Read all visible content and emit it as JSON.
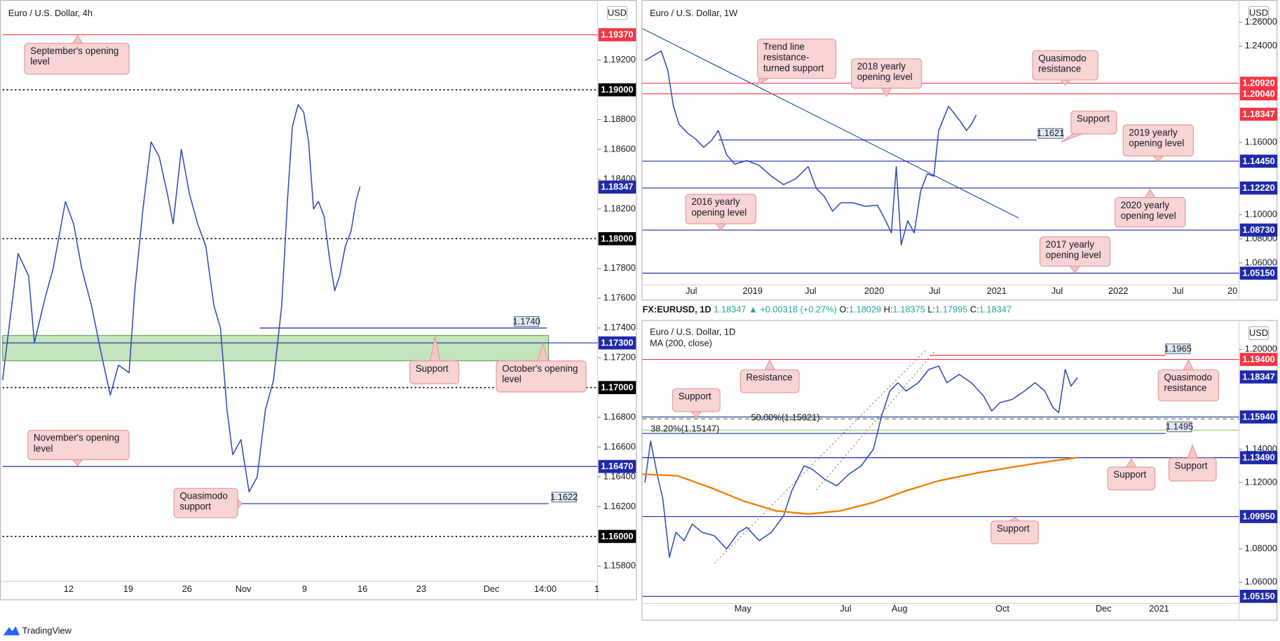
{
  "chart_data": [
    {
      "type": "line",
      "title": "Euro / U.S. Dollar, 4h",
      "currency": "USD",
      "xtick_labels": [
        "12",
        "19",
        "26",
        "Nov",
        "9",
        "16",
        "23",
        "Dec",
        "14:00",
        "1"
      ],
      "ylim": [
        1.1572,
        1.19587
      ],
      "yticks": [
        {
          "value": 1.192,
          "label": "1.19200"
        },
        {
          "value": 1.188,
          "label": "1.18800"
        },
        {
          "value": 1.186,
          "label": "1.18600"
        },
        {
          "value": 1.184,
          "label": "1.18400"
        },
        {
          "value": 1.182,
          "label": "1.18200"
        },
        {
          "value": 1.178,
          "label": "1.17800"
        },
        {
          "value": 1.176,
          "label": "1.17600"
        },
        {
          "value": 1.174,
          "label": "1.17400"
        },
        {
          "value": 1.172,
          "label": "1.17200"
        },
        {
          "value": 1.168,
          "label": "1.16800"
        },
        {
          "value": 1.166,
          "label": "1.16600"
        },
        {
          "value": 1.164,
          "label": "1.16400"
        },
        {
          "value": 1.162,
          "label": "1.16200"
        },
        {
          "value": 1.158,
          "label": "1.15800"
        }
      ],
      "series": [
        {
          "color": "#2a49b8",
          "values": [
            1.1705,
            1.1745,
            1.179,
            1.1775,
            1.173,
            1.176,
            1.178,
            1.1825,
            1.181,
            1.178,
            1.1755,
            1.172,
            1.1695,
            1.1715,
            1.171,
            1.1765,
            1.182,
            1.1865,
            1.1855,
            1.183,
            1.181,
            1.186,
            1.183,
            1.181,
            1.1795,
            1.1755,
            1.174,
            1.1685,
            1.1655,
            1.1665,
            1.163,
            1.164,
            1.1685,
            1.1705,
            1.1755,
            1.1825,
            1.1875,
            1.189,
            1.1885,
            1.1865,
            1.182,
            1.1825,
            1.1815,
            1.1785,
            1.1765,
            1.1775,
            1.1795,
            1.1805,
            1.1825,
            1.1835
          ]
        }
      ],
      "zone": {
        "from": 1.1718,
        "to": 1.1735,
        "color": "#b9dfb0"
      },
      "levels": [
        {
          "value": 1.1937,
          "label": "1.19370",
          "color": "#f23645",
          "style": "solid"
        },
        {
          "value": 1.19,
          "label": "1.19000",
          "color": "#000000",
          "style": "dotted"
        },
        {
          "value": 1.18347,
          "label": "1.18347",
          "color": "#1f2aa8",
          "style": "none"
        },
        {
          "value": 1.18,
          "label": "1.18000",
          "color": "#000000",
          "style": "dotted"
        },
        {
          "value": 1.174,
          "label": "1.1740",
          "color": "#1f2aa8",
          "style": "solid"
        },
        {
          "value": 1.173,
          "label": "1.17300",
          "color": "#1f2aa8",
          "style": "solid"
        },
        {
          "value": 1.17,
          "label": "1.17000",
          "color": "#000000",
          "style": "dotted"
        },
        {
          "value": 1.1647,
          "label": "1.16470",
          "color": "#1f2aa8",
          "style": "solid"
        },
        {
          "value": 1.1622,
          "label": "1.1622",
          "color": "#1f2aa8",
          "style": "solid"
        },
        {
          "value": 1.16,
          "label": "1.16000",
          "color": "#000000",
          "style": "dotted"
        }
      ],
      "annotations": [
        "September's opening level",
        "Support",
        "October's opening level",
        "November's opening level",
        "Quasimodo support"
      ]
    },
    {
      "type": "line",
      "title": "Euro / U.S. Dollar, 1W",
      "currency": "USD",
      "xtick_labels": [
        "Jul",
        "2019",
        "Jul",
        "2020",
        "Jul",
        "2021",
        "Jul",
        "2022",
        "Jul",
        "20"
      ],
      "ylim": [
        1.0444,
        1.2763
      ],
      "yticks": [
        {
          "value": 1.26,
          "label": "1.26000"
        },
        {
          "value": 1.24,
          "label": "1.24000"
        },
        {
          "value": 1.16,
          "label": "1.16000"
        },
        {
          "value": 1.1,
          "label": "1.10000"
        },
        {
          "value": 1.08,
          "label": "1.08000"
        },
        {
          "value": 1.06,
          "label": "1.06000"
        }
      ],
      "series": [
        {
          "color": "#2a49b8",
          "values": [
            1.228,
            1.232,
            1.236,
            1.22,
            1.19,
            1.175,
            1.168,
            1.163,
            1.156,
            1.162,
            1.17,
            1.15,
            1.142,
            1.145,
            1.141,
            1.132,
            1.125,
            1.13,
            1.14,
            1.122,
            1.115,
            1.103,
            1.11,
            1.11,
            1.107,
            1.108,
            1.095,
            1.085,
            1.14,
            1.075,
            1.095,
            1.085,
            1.12,
            1.134,
            1.132,
            1.17,
            1.18,
            1.19,
            1.185,
            1.178,
            1.17,
            1.175,
            1.183
          ]
        }
      ],
      "levels": [
        {
          "value": 1.2092,
          "label": "1.20920",
          "color": "#f23645",
          "style": "solid"
        },
        {
          "value": 1.2004,
          "label": "1.20040",
          "color": "#f23645",
          "style": "solid"
        },
        {
          "value": 1.18347,
          "label": "1.18347",
          "color": "#f23645",
          "style": "none"
        },
        {
          "value": 1.1621,
          "label": "1.1621",
          "color": "#1f2aa8",
          "style": "solid"
        },
        {
          "value": 1.1445,
          "label": "1.14450",
          "color": "#1f2aa8",
          "style": "solid"
        },
        {
          "value": 1.1222,
          "label": "1.12220",
          "color": "#1f2aa8",
          "style": "solid"
        },
        {
          "value": 1.0873,
          "label": "1.08730",
          "color": "#1f2aa8",
          "style": "solid"
        },
        {
          "value": 1.0515,
          "label": "1.05150",
          "color": "#1f2aa8",
          "style": "solid"
        }
      ],
      "annotations": [
        "Trend line resistance-turned support",
        "2018 yearly opening level",
        "Quasimodo resistance",
        "Support",
        "2019 yearly opening level",
        "2016 yearly opening level",
        "2020 yearly opening level",
        "2017 yearly opening level"
      ]
    },
    {
      "type": "line",
      "title": "Euro / U.S. Dollar, 1D",
      "currency": "USD",
      "symbol_bar": {
        "symbol": "FX:EURUSD, 1D",
        "last": 1.18347,
        "arrow": "▲",
        "change": "+0.00318 (+0.27%)",
        "open_label": "O:",
        "open": 1.18029,
        "high_label": "H:",
        "high": 1.18375,
        "low_label": "L:",
        "low": 1.17995,
        "close_label": "C:",
        "close": 1.18347
      },
      "xtick_labels": [
        "May",
        "Jul",
        "Aug",
        "Oct",
        "Dec",
        "2021"
      ],
      "ylim": [
        1.0492,
        1.2162
      ],
      "yticks": [
        {
          "value": 1.2,
          "label": "1.20000"
        },
        {
          "value": 1.14,
          "label": "1.14000"
        },
        {
          "value": 1.12,
          "label": "1.12000"
        },
        {
          "value": 1.08,
          "label": "1.08000"
        },
        {
          "value": 1.06,
          "label": "1.06000"
        }
      ],
      "series": [
        {
          "color": "#2a49b8",
          "values": [
            1.12,
            1.145,
            1.125,
            1.11,
            1.075,
            1.09,
            1.085,
            1.095,
            1.09,
            1.088,
            1.08,
            1.09,
            1.093,
            1.085,
            1.09,
            1.1,
            1.115,
            1.13,
            1.128,
            1.122,
            1.118,
            1.125,
            1.13,
            1.14,
            1.16,
            1.175,
            1.18,
            1.175,
            1.18,
            1.188,
            1.19,
            1.18,
            1.185,
            1.18,
            1.172,
            1.163,
            1.168,
            1.17,
            1.175,
            1.18,
            1.175,
            1.165,
            1.162,
            1.188,
            1.178,
            1.183
          ]
        },
        {
          "name": "MA (200, close)",
          "color": "#f57c00",
          "values": [
            1.125,
            1.124,
            1.117,
            1.109,
            1.103,
            1.101,
            1.103,
            1.108,
            1.115,
            1.121,
            1.126,
            1.13,
            1.133,
            1.135
          ]
        }
      ],
      "levels": [
        {
          "value": 1.194,
          "label": "1.19400",
          "color": "#f23645",
          "style": "solid"
        },
        {
          "value": 1.1965,
          "label": "1.1965",
          "color": "#f23645",
          "style": "solid"
        },
        {
          "value": 1.18347,
          "label": "1.18347",
          "color": "#1f2aa8",
          "style": "none"
        },
        {
          "value": 1.1594,
          "label": "1.15940",
          "color": "#1f2aa8",
          "style": "solid"
        },
        {
          "value": 1.15821,
          "label": "50.00%(1.15821)",
          "color": "#7cb342",
          "style": "dashed"
        },
        {
          "value": 1.15147,
          "label": "38.20%(1.15147)",
          "color": "#9ccc65",
          "style": "solid"
        },
        {
          "value": 1.1495,
          "label": "1.1495",
          "color": "#1f2aa8",
          "style": "solid"
        },
        {
          "value": 1.1349,
          "label": "1.13490",
          "color": "#1f2aa8",
          "style": "solid"
        },
        {
          "value": 1.0995,
          "label": "1.09950",
          "color": "#1f2aa8",
          "style": "solid"
        },
        {
          "value": 1.0515,
          "label": "1.05150",
          "color": "#1f2aa8",
          "style": "solid"
        }
      ],
      "annotations": [
        "Resistance",
        "Support",
        "Quasimodo resistance",
        "Support",
        "Support",
        "Support"
      ]
    }
  ],
  "footer": {
    "brand": "TradingView"
  }
}
